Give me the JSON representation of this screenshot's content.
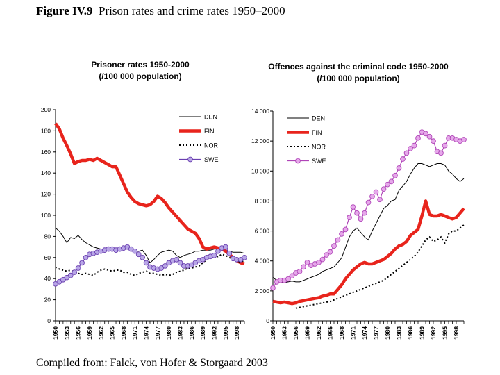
{
  "figure": {
    "label": "Figure IV.9",
    "title": "Prison rates and crime rates 1950–2000",
    "source": "Compiled from: Falck, von Hofer & Storgaard 2003"
  },
  "chart_data": [
    {
      "type": "line",
      "title": "Prisoner rates 1950-2000",
      "subtitle": "(/100 000 population)",
      "xlabel": "",
      "ylabel": "",
      "ylim": [
        0,
        200
      ],
      "yticks": [
        0,
        20,
        40,
        60,
        80,
        100,
        120,
        140,
        160,
        180,
        200
      ],
      "ytick_labels": [
        "0",
        "20",
        "40",
        "60",
        "80",
        "100",
        "120",
        "140",
        "160",
        "180",
        "200"
      ],
      "xlim": [
        1950,
        2000
      ],
      "xticks": [
        1950,
        1953,
        1956,
        1959,
        1962,
        1965,
        1968,
        1971,
        1974,
        1977,
        1980,
        1983,
        1986,
        1989,
        1992,
        1995,
        1998
      ],
      "xtick_labels": [
        "1950",
        "1953",
        "1956",
        "1959",
        "1962",
        "1965",
        "1968",
        "1971",
        "1974",
        "1977",
        "1980",
        "1983",
        "1986",
        "1989",
        "1992",
        "1995",
        "1998"
      ],
      "legend_position": "top-right",
      "series": [
        {
          "name": "DEN",
          "color": "#000000",
          "style": "solid-thin",
          "x": [
            1950,
            1951,
            1952,
            1953,
            1954,
            1955,
            1956,
            1957,
            1958,
            1959,
            1960,
            1961,
            1962,
            1963,
            1964,
            1965,
            1966,
            1967,
            1968,
            1969,
            1970,
            1971,
            1972,
            1973,
            1974,
            1975,
            1976,
            1977,
            1978,
            1979,
            1980,
            1981,
            1982,
            1983,
            1984,
            1985,
            1986,
            1987,
            1988,
            1989,
            1990,
            1991,
            1992,
            1993,
            1994,
            1995,
            1996,
            1997,
            1998,
            1999,
            2000
          ],
          "values": [
            88,
            85,
            80,
            74,
            79,
            78,
            81,
            77,
            74,
            72,
            70,
            69,
            68,
            68,
            67,
            66,
            67,
            67,
            69,
            70,
            70,
            66,
            66,
            67,
            62,
            55,
            58,
            62,
            65,
            66,
            67,
            66,
            62,
            60,
            62,
            63,
            64,
            66,
            66,
            67,
            67,
            67,
            68,
            68,
            67,
            67,
            66,
            65,
            65,
            65,
            64
          ]
        },
        {
          "name": "FIN",
          "color": "#e8241c",
          "style": "solid-thick",
          "x": [
            1950,
            1951,
            1952,
            1953,
            1954,
            1955,
            1956,
            1957,
            1958,
            1959,
            1960,
            1961,
            1962,
            1963,
            1964,
            1965,
            1966,
            1967,
            1968,
            1969,
            1970,
            1971,
            1972,
            1973,
            1974,
            1975,
            1976,
            1977,
            1978,
            1979,
            1980,
            1981,
            1982,
            1983,
            1984,
            1985,
            1986,
            1987,
            1988,
            1989,
            1990,
            1991,
            1992,
            1993,
            1994,
            1995,
            1996,
            1997,
            1998,
            1999,
            2000
          ],
          "values": [
            187,
            182,
            173,
            166,
            158,
            149,
            151,
            152,
            152,
            153,
            152,
            154,
            152,
            150,
            148,
            146,
            146,
            138,
            130,
            122,
            117,
            113,
            111,
            110,
            109,
            110,
            113,
            118,
            116,
            112,
            107,
            103,
            99,
            95,
            91,
            87,
            85,
            83,
            78,
            70,
            68,
            69,
            70,
            69,
            68,
            66,
            63,
            60,
            57,
            55,
            54
          ]
        },
        {
          "name": "NOR",
          "color": "#000000",
          "style": "dotted",
          "x": [
            1950,
            1951,
            1952,
            1953,
            1954,
            1955,
            1956,
            1957,
            1958,
            1959,
            1960,
            1961,
            1962,
            1963,
            1964,
            1965,
            1966,
            1967,
            1968,
            1969,
            1970,
            1971,
            1972,
            1973,
            1974,
            1975,
            1976,
            1977,
            1978,
            1979,
            1980,
            1981,
            1982,
            1983,
            1984,
            1985,
            1986,
            1987,
            1988,
            1989,
            1990,
            1991,
            1992,
            1993,
            1994,
            1995,
            1996,
            1997,
            1998,
            1999,
            2000
          ],
          "values": [
            51,
            49,
            48,
            47,
            48,
            46,
            45,
            44,
            45,
            44,
            43,
            46,
            48,
            49,
            48,
            47,
            48,
            48,
            46,
            46,
            44,
            43,
            45,
            46,
            47,
            45,
            45,
            44,
            43,
            44,
            43,
            44,
            46,
            47,
            48,
            50,
            50,
            51,
            52,
            55,
            58,
            60,
            60,
            61,
            63,
            62,
            60,
            58,
            56,
            56,
            57
          ]
        },
        {
          "name": "SWE",
          "color": "#6a3fb0",
          "style": "circle-markers",
          "x": [
            1950,
            1951,
            1952,
            1953,
            1954,
            1955,
            1956,
            1957,
            1958,
            1959,
            1960,
            1961,
            1962,
            1963,
            1964,
            1965,
            1966,
            1967,
            1968,
            1969,
            1970,
            1971,
            1972,
            1973,
            1974,
            1975,
            1976,
            1977,
            1978,
            1979,
            1980,
            1981,
            1982,
            1983,
            1984,
            1985,
            1986,
            1987,
            1988,
            1989,
            1990,
            1991,
            1992,
            1993,
            1994,
            1995,
            1996,
            1997,
            1998,
            1999,
            2000
          ],
          "values": [
            35,
            37,
            39,
            41,
            43,
            46,
            50,
            55,
            60,
            63,
            64,
            65,
            66,
            67,
            68,
            68,
            67,
            68,
            69,
            70,
            68,
            66,
            63,
            60,
            55,
            51,
            50,
            49,
            50,
            52,
            55,
            57,
            58,
            55,
            52,
            52,
            53,
            55,
            57,
            58,
            60,
            61,
            62,
            66,
            69,
            70,
            64,
            59,
            58,
            58,
            60
          ]
        }
      ]
    },
    {
      "type": "line",
      "title": "Offences against the criminal code 1950-2000",
      "subtitle": "(/100 000 population)",
      "xlabel": "",
      "ylabel": "",
      "ylim": [
        0,
        14000
      ],
      "yticks": [
        0,
        2000,
        4000,
        6000,
        8000,
        10000,
        12000,
        14000
      ],
      "ytick_labels": [
        "0",
        "2 000",
        "4 000",
        "6 000",
        "8 000",
        "10 000",
        "12 000",
        "14 000"
      ],
      "xlim": [
        1950,
        2000
      ],
      "xticks": [
        1950,
        1953,
        1956,
        1959,
        1962,
        1965,
        1968,
        1971,
        1974,
        1977,
        1980,
        1983,
        1986,
        1989,
        1992,
        1995,
        1998
      ],
      "xtick_labels": [
        "1950",
        "1953",
        "1956",
        "1959",
        "1962",
        "1965",
        "1968",
        "1971",
        "1974",
        "1977",
        "1980",
        "1983",
        "1986",
        "1989",
        "1992",
        "1995",
        "1998"
      ],
      "legend_position": "top-left",
      "series": [
        {
          "name": "DEN",
          "color": "#000000",
          "style": "solid-thin",
          "x": [
            1950,
            1951,
            1952,
            1953,
            1954,
            1955,
            1956,
            1957,
            1958,
            1959,
            1960,
            1961,
            1962,
            1963,
            1964,
            1965,
            1966,
            1967,
            1968,
            1969,
            1970,
            1971,
            1972,
            1973,
            1974,
            1975,
            1976,
            1977,
            1978,
            1979,
            1980,
            1981,
            1982,
            1983,
            1984,
            1985,
            1986,
            1987,
            1988,
            1989,
            1990,
            1991,
            1992,
            1993,
            1994,
            1995,
            1996,
            1997,
            1998,
            1999,
            2000
          ],
          "values": [
            2900,
            2700,
            2600,
            2550,
            2600,
            2650,
            2600,
            2600,
            2700,
            2800,
            2900,
            3000,
            3100,
            3300,
            3400,
            3500,
            3600,
            3900,
            4200,
            4900,
            5600,
            6000,
            6200,
            5900,
            5600,
            5400,
            6000,
            6500,
            7000,
            7500,
            7700,
            8000,
            8100,
            8700,
            9000,
            9300,
            9800,
            10200,
            10500,
            10500,
            10400,
            10300,
            10400,
            10500,
            10500,
            10400,
            10000,
            9800,
            9500,
            9300,
            9500
          ]
        },
        {
          "name": "FIN",
          "color": "#e8241c",
          "style": "solid-thick",
          "x": [
            1950,
            1951,
            1952,
            1953,
            1954,
            1955,
            1956,
            1957,
            1958,
            1959,
            1960,
            1961,
            1962,
            1963,
            1964,
            1965,
            1966,
            1967,
            1968,
            1969,
            1970,
            1971,
            1972,
            1973,
            1974,
            1975,
            1976,
            1977,
            1978,
            1979,
            1980,
            1981,
            1982,
            1983,
            1984,
            1985,
            1986,
            1987,
            1988,
            1989,
            1990,
            1991,
            1992,
            1993,
            1994,
            1995,
            1996,
            1997,
            1998,
            1999,
            2000
          ],
          "values": [
            1300,
            1250,
            1200,
            1250,
            1200,
            1150,
            1200,
            1300,
            1350,
            1400,
            1450,
            1500,
            1550,
            1650,
            1700,
            1800,
            1800,
            2100,
            2400,
            2800,
            3100,
            3400,
            3600,
            3800,
            3900,
            3800,
            3800,
            3900,
            4000,
            4100,
            4300,
            4500,
            4800,
            5000,
            5100,
            5300,
            5700,
            5900,
            6100,
            7000,
            8000,
            7100,
            7000,
            7000,
            7100,
            7000,
            6900,
            6800,
            6900,
            7200,
            7500
          ]
        },
        {
          "name": "NOR",
          "color": "#000000",
          "style": "dotted",
          "x": [
            1950,
            1951,
            1952,
            1953,
            1954,
            1955,
            1956,
            1957,
            1958,
            1959,
            1960,
            1961,
            1962,
            1963,
            1964,
            1965,
            1966,
            1967,
            1968,
            1969,
            1970,
            1971,
            1972,
            1973,
            1974,
            1975,
            1976,
            1977,
            1978,
            1979,
            1980,
            1981,
            1982,
            1983,
            1984,
            1985,
            1986,
            1987,
            1988,
            1989,
            1990,
            1991,
            1992,
            1993,
            1994,
            1995,
            1996,
            1997,
            1998,
            1999,
            2000
          ],
          "values": [
            null,
            null,
            null,
            null,
            null,
            null,
            850,
            900,
            950,
            1000,
            1050,
            1100,
            1150,
            1200,
            1250,
            1300,
            1400,
            1500,
            1600,
            1700,
            1800,
            1900,
            2000,
            2100,
            2200,
            2300,
            2400,
            2500,
            2600,
            2700,
            2900,
            3100,
            3300,
            3500,
            3700,
            3900,
            4100,
            4300,
            4600,
            5000,
            5400,
            5600,
            5300,
            5400,
            5600,
            5200,
            5800,
            6000,
            6000,
            6200,
            6400
          ]
        },
        {
          "name": "SWE",
          "color": "#b045b8",
          "style": "circle-markers",
          "x": [
            1950,
            1951,
            1952,
            1953,
            1954,
            1955,
            1956,
            1957,
            1958,
            1959,
            1960,
            1961,
            1962,
            1963,
            1964,
            1965,
            1966,
            1967,
            1968,
            1969,
            1970,
            1971,
            1972,
            1973,
            1974,
            1975,
            1976,
            1977,
            1978,
            1979,
            1980,
            1981,
            1982,
            1983,
            1984,
            1985,
            1986,
            1987,
            1988,
            1989,
            1990,
            1991,
            1992,
            1993,
            1994,
            1995,
            1996,
            1997,
            1998,
            1999,
            2000
          ],
          "values": [
            2200,
            2600,
            2700,
            2700,
            2800,
            3000,
            3200,
            3300,
            3600,
            3900,
            3700,
            3800,
            3900,
            4100,
            4400,
            4600,
            5000,
            5400,
            5800,
            6100,
            6900,
            7600,
            7200,
            6800,
            7200,
            7900,
            8300,
            8600,
            8100,
            8800,
            9100,
            9300,
            9700,
            10200,
            10800,
            11200,
            11500,
            11700,
            12200,
            12600,
            12500,
            12300,
            12000,
            11300,
            11200,
            11700,
            12200,
            12200,
            12100,
            12000,
            12100
          ]
        }
      ]
    }
  ]
}
